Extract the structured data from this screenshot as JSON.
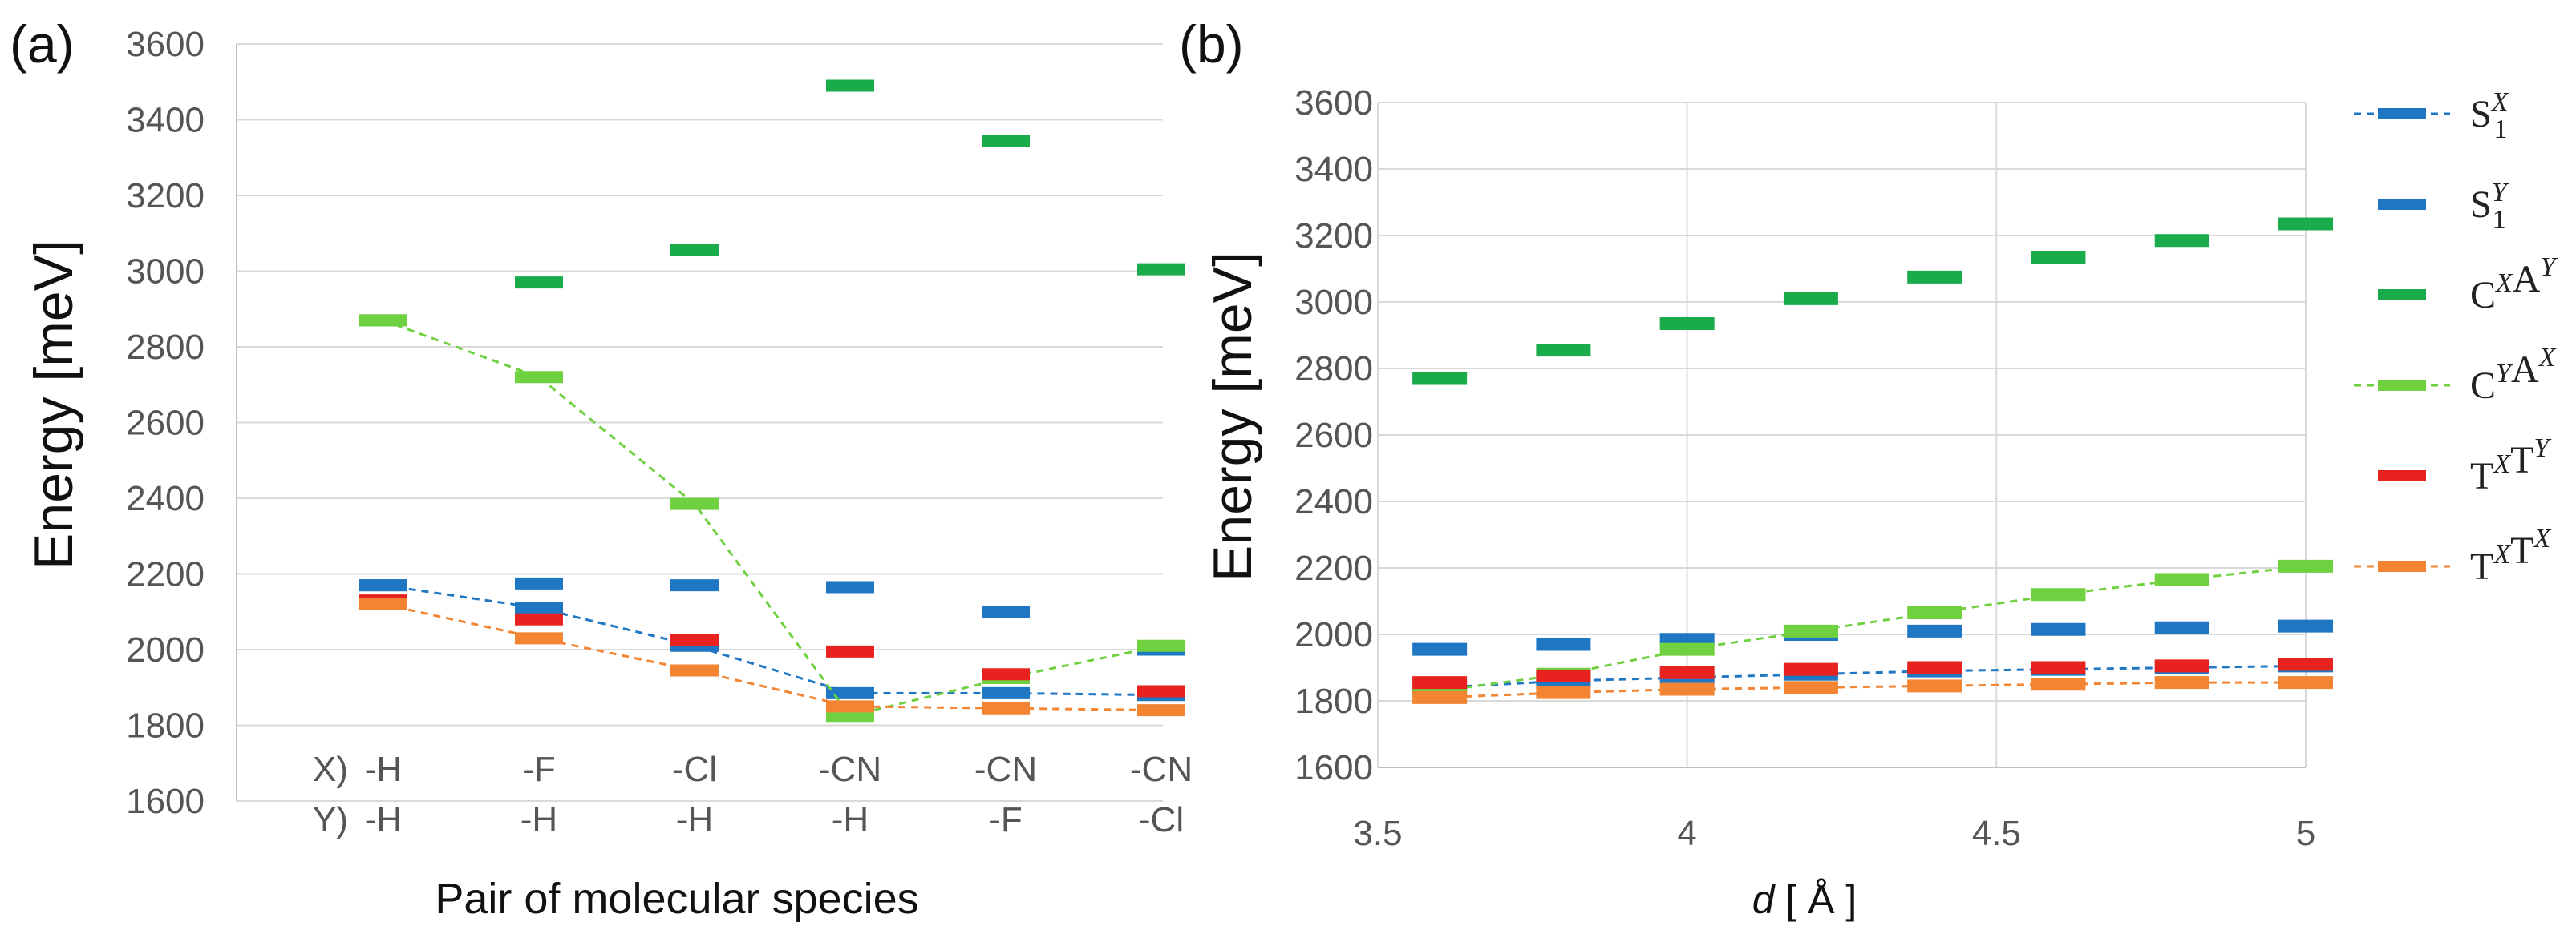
{
  "colors": {
    "S1X": "#1f77c4",
    "S1Y": "#1f77c4",
    "CXAY": "#1aab4a",
    "CYAX": "#6fd13f",
    "TXTY": "#e8231f",
    "TXTX": "#f28432",
    "grid": "#d9d9d9",
    "axis": "#bfbfbf"
  },
  "legend": [
    {
      "key": "S1X",
      "base": "S",
      "sub": "1",
      "sup": "X",
      "dashed": true
    },
    {
      "key": "S1Y",
      "base": "S",
      "sub": "1",
      "sup": "Y",
      "dashed": false
    },
    {
      "key": "CXAY",
      "label": "C^X A^Y",
      "dashed": false
    },
    {
      "key": "CYAX",
      "label": "C^Y A^X",
      "dashed": true
    },
    {
      "key": "TXTY",
      "label": "T^X T^Y",
      "dashed": false
    },
    {
      "key": "TXTX",
      "label": "T^X T^X",
      "dashed": true
    }
  ],
  "chart_data": [
    {
      "type": "line",
      "panel_label": "(a)",
      "title": "",
      "ylabel": "Energy [meV]",
      "xlabel": "Pair of molecular species",
      "ylim": [
        1600,
        3600
      ],
      "yticks": [
        1600,
        1800,
        2000,
        2200,
        2400,
        2600,
        2800,
        3000,
        3200,
        3400,
        3600
      ],
      "grid": true,
      "row_labels": [
        "X)",
        "Y)"
      ],
      "categories_x": [
        "-H",
        "-F",
        "-Cl",
        "-CN",
        "-CN",
        "-CN"
      ],
      "categories_y": [
        "-H",
        "-H",
        "-H",
        "-H",
        "-F",
        "-Cl"
      ],
      "series": [
        {
          "key": "S1X",
          "name": "S1^X",
          "values": [
            2170,
            2110,
            2010,
            1885,
            1885,
            1880
          ]
        },
        {
          "key": "S1Y",
          "name": "S1^Y",
          "values": [
            2170,
            2175,
            2170,
            2165,
            2100,
            2000
          ]
        },
        {
          "key": "CXAY",
          "name": "C^X A^Y",
          "values": [
            2870,
            2970,
            3055,
            3490,
            3345,
            3005
          ]
        },
        {
          "key": "CYAX",
          "name": "C^Y A^X",
          "values": [
            2870,
            2720,
            2385,
            1825,
            1925,
            2010
          ]
        },
        {
          "key": "TXTY",
          "name": "T^X T^Y",
          "values": [
            2130,
            2080,
            2025,
            1995,
            1935,
            1890
          ]
        },
        {
          "key": "TXTX",
          "name": "T^X T^X",
          "values": [
            2120,
            2030,
            1945,
            1850,
            1845,
            1840
          ]
        }
      ]
    },
    {
      "type": "line",
      "panel_label": "(b)",
      "title": "",
      "ylabel": "Energy [meV]",
      "xlabel_italic": "d",
      "xlabel_rest": " [ Å ]",
      "xlim": [
        3.5,
        5
      ],
      "xticks": [
        3.5,
        4,
        4.5,
        5
      ],
      "ylim": [
        1600,
        3600
      ],
      "yticks": [
        1600,
        1800,
        2000,
        2200,
        2400,
        2600,
        2800,
        3000,
        3200,
        3400,
        3600
      ],
      "grid": true,
      "x": [
        3.6,
        3.8,
        4.0,
        4.2,
        4.4,
        4.6,
        4.8,
        5.0
      ],
      "series": [
        {
          "key": "S1X",
          "name": "S1^X",
          "values": [
            1840,
            1860,
            1870,
            1880,
            1890,
            1895,
            1900,
            1905
          ]
        },
        {
          "key": "S1Y",
          "name": "S1^Y",
          "values": [
            1955,
            1970,
            1985,
            2000,
            2010,
            2015,
            2020,
            2025
          ]
        },
        {
          "key": "CXAY",
          "name": "C^X A^Y",
          "values": [
            2770,
            2855,
            2935,
            3010,
            3075,
            3135,
            3185,
            3235
          ]
        },
        {
          "key": "CYAX",
          "name": "C^Y A^X",
          "values": [
            1830,
            1880,
            1955,
            2010,
            2065,
            2120,
            2165,
            2205
          ]
        },
        {
          "key": "TXTY",
          "name": "T^X T^Y",
          "values": [
            1855,
            1875,
            1885,
            1895,
            1900,
            1900,
            1905,
            1910
          ]
        },
        {
          "key": "TXTX",
          "name": "T^X T^X",
          "values": [
            1810,
            1825,
            1835,
            1840,
            1845,
            1850,
            1855,
            1855
          ]
        }
      ]
    }
  ]
}
